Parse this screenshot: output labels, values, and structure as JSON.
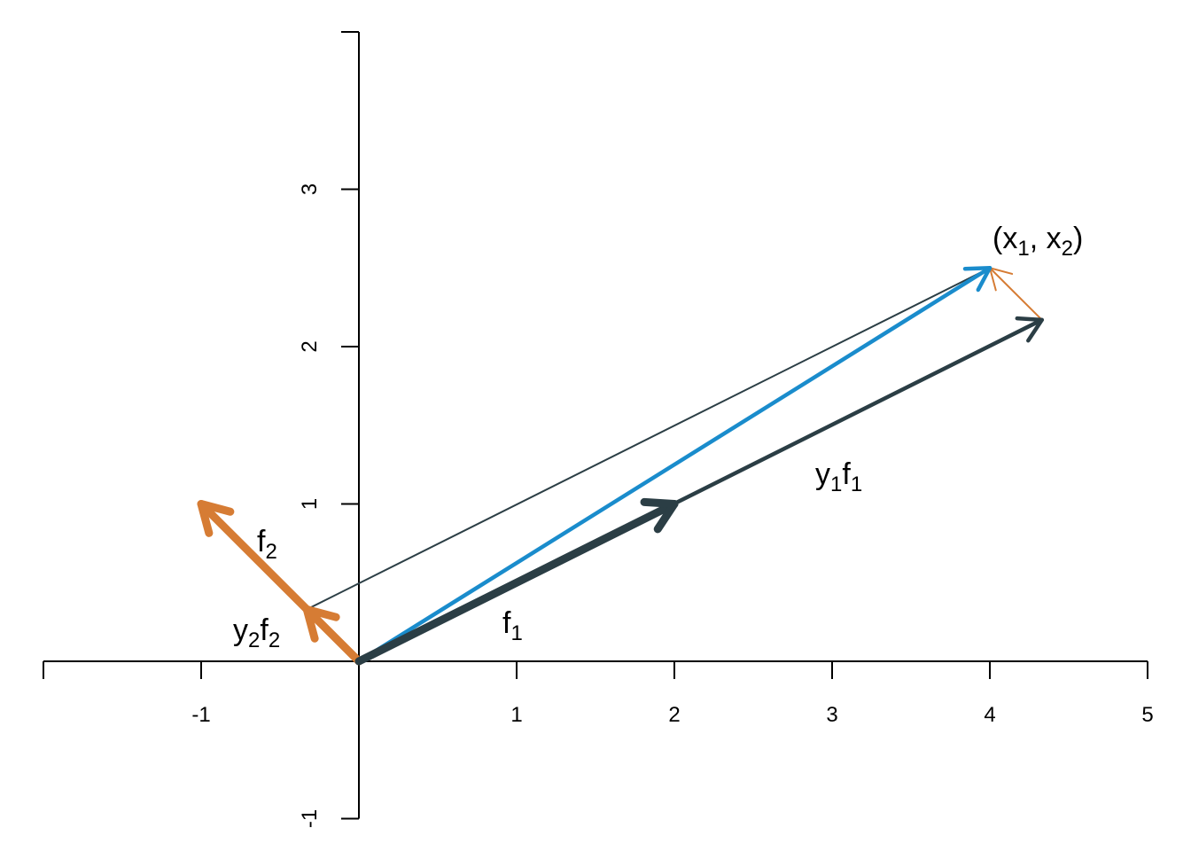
{
  "chart_data": {
    "type": "vector-diagram",
    "xlim": [
      -2,
      5
    ],
    "ylim": [
      -1,
      4
    ],
    "x_ticks": [
      -2,
      -1,
      0,
      1,
      2,
      3,
      4,
      5
    ],
    "x_tick_labels": [
      "",
      "-1",
      "",
      "1",
      "2",
      "3",
      "4",
      "5"
    ],
    "y_ticks": [
      -1,
      0,
      1,
      2,
      3,
      4
    ],
    "y_tick_labels": [
      "-1",
      "",
      "1",
      "2",
      "3",
      ""
    ],
    "colors": {
      "dark": "#2b3e45",
      "orange": "#d67c34",
      "blue": "#1a8ccc",
      "axis": "#000000"
    },
    "segments": [
      {
        "id": "projection-line",
        "from": [
          -0.33,
          0.33
        ],
        "to": [
          4.0,
          2.5
        ],
        "color": "dark",
        "weight": "thin",
        "arrow": false
      },
      {
        "id": "residual-arrow",
        "from": [
          4.33,
          2.17
        ],
        "to": [
          4.0,
          2.5
        ],
        "color": "orange",
        "weight": "thin",
        "arrow": true
      },
      {
        "id": "y1f1-arrow",
        "from": [
          0,
          0
        ],
        "to": [
          4.33,
          2.17
        ],
        "color": "dark",
        "weight": "medium",
        "arrow": true
      },
      {
        "id": "x-arrow",
        "from": [
          0,
          0
        ],
        "to": [
          4.0,
          2.5
        ],
        "color": "blue",
        "weight": "medium",
        "arrow": true
      },
      {
        "id": "f2-arrow",
        "from": [
          0,
          0
        ],
        "to": [
          -1,
          1
        ],
        "color": "orange",
        "weight": "thick",
        "arrow": true
      },
      {
        "id": "y2f2-arrow",
        "from": [
          0,
          0
        ],
        "to": [
          -0.33,
          0.33
        ],
        "color": "orange",
        "weight": "thick",
        "arrow": true
      },
      {
        "id": "f1-arrow",
        "from": [
          0,
          0
        ],
        "to": [
          2,
          1
        ],
        "color": "dark",
        "weight": "thick",
        "arrow": true
      }
    ],
    "labels": {
      "f1": {
        "base": "f",
        "sub": "1"
      },
      "f2": {
        "base": "f",
        "sub": "2"
      },
      "y1f1": {
        "b1": "y",
        "s1": "1",
        "b2": "f",
        "s2": "1"
      },
      "y2f2": {
        "b1": "y",
        "s1": "2",
        "b2": "f",
        "s2": "2"
      },
      "point": {
        "open": "(x",
        "s1": "1",
        "mid": ", x",
        "s2": "2",
        "close": ")"
      }
    }
  }
}
